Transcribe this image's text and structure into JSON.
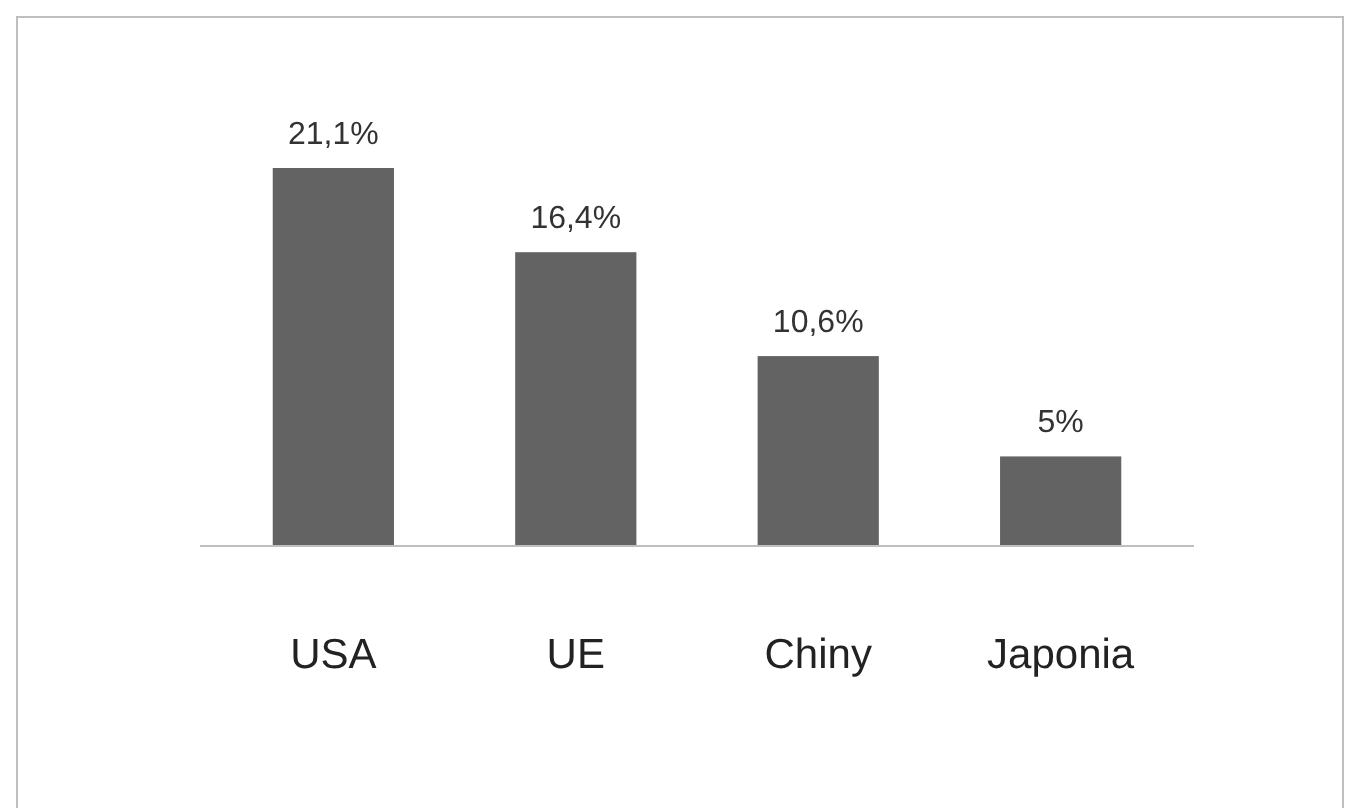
{
  "chart_data": {
    "type": "bar",
    "categories": [
      "USA",
      "UE",
      "Chiny",
      "Japonia"
    ],
    "values": [
      21.1,
      16.4,
      10.6,
      5
    ],
    "color": "#636363",
    "value_labels": [
      "21,1%",
      "16,4%",
      "10,6%",
      "5%"
    ],
    "ylim": [
      0,
      21.1
    ],
    "tick_labels": "x"
  }
}
